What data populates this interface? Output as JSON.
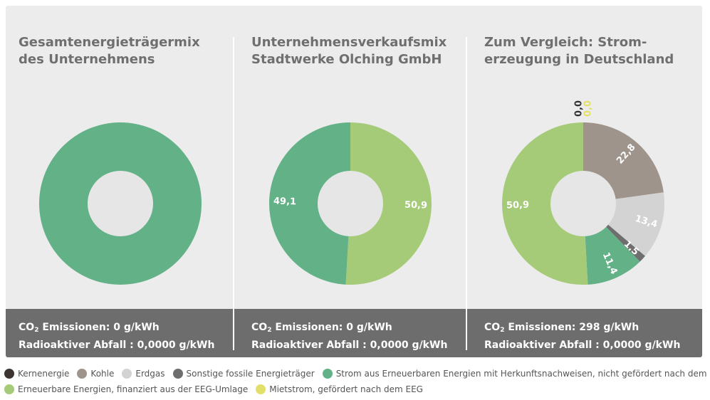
{
  "panels": [
    {
      "title_line1": "Gesamtenergieträgermix",
      "title_line2": "des Unternehmens",
      "co2_label": "CO",
      "co2_sub": "2",
      "co2_text": " Emissionen: 0 g/kWh",
      "waste_text": "Radioaktiver Abfall : 0,0000 g/kWh"
    },
    {
      "title_line1": "Unternehmensverkaufsmix",
      "title_line2": "Stadtwerke Olching GmbH",
      "co2_label": "CO",
      "co2_sub": "2",
      "co2_text": " Emissionen: 0 g/kWh",
      "waste_text": "Radioaktiver Abfall : 0,0000 g/kWh"
    },
    {
      "title_line1": "Zum Vergleich: Strom-",
      "title_line2": "erzeugung in Deutschland",
      "co2_label": "CO",
      "co2_sub": "2",
      "co2_text": " Emissionen: 298 g/kWh",
      "waste_text": "Radioaktiver Abfall : 0,0000 g/kWh"
    }
  ],
  "legend": [
    {
      "label": "Kernenergie",
      "color": "#3b3430"
    },
    {
      "label": "Kohle",
      "color": "#9e948b"
    },
    {
      "label": "Erdgas",
      "color": "#d3d3d3"
    },
    {
      "label": "Sonstige fossile Energieträger",
      "color": "#6e6e6e"
    },
    {
      "label": "Strom aus Erneuerbaren Energien mit Herkunftsnachweisen, nicht gefördert nach dem EEG",
      "color": "#63b187"
    },
    {
      "label": "Erneuerbare Energien, finanziert aus der EEG-Umlage",
      "color": "#a6cb78"
    },
    {
      "label": "Mietstrom, gefördert nach dem EEG",
      "color": "#e3e06a"
    }
  ],
  "chart_data": [
    {
      "type": "pie",
      "title": "Gesamtenergieträgermix des Unternehmens",
      "slices": [
        {
          "name": "Strom aus Erneuerbaren Energien mit Herkunftsnachweisen, nicht gefördert nach dem EEG",
          "value": 100,
          "label": "",
          "color": "#63b187"
        }
      ]
    },
    {
      "type": "pie",
      "title": "Unternehmensverkaufsmix Stadtwerke Olching GmbH",
      "slices": [
        {
          "name": "Erneuerbare Energien, finanziert aus der EEG-Umlage",
          "value": 50.9,
          "label": "50,9",
          "color": "#a6cb78"
        },
        {
          "name": "Strom aus Erneuerbaren Energien mit Herkunftsnachweisen, nicht gefördert nach dem EEG",
          "value": 49.1,
          "label": "49,1",
          "color": "#63b187"
        }
      ]
    },
    {
      "type": "pie",
      "title": "Zum Vergleich: Stromerzeugung in Deutschland",
      "slices": [
        {
          "name": "Kernenergie",
          "value": 0.0,
          "label": "0,0",
          "color": "#3b3430"
        },
        {
          "name": "Kohle",
          "value": 22.8,
          "label": "22,8",
          "color": "#9e948b"
        },
        {
          "name": "Erdgas",
          "value": 13.4,
          "label": "13,4",
          "color": "#d3d3d3"
        },
        {
          "name": "Sonstige fossile Energieträger",
          "value": 1.5,
          "label": "1,5",
          "color": "#6e6e6e"
        },
        {
          "name": "Strom aus Erneuerbaren Energien mit Herkunftsnachweisen, nicht gefördert nach dem EEG",
          "value": 11.4,
          "label": "11,4",
          "color": "#63b187"
        },
        {
          "name": "Erneuerbare Energien, finanziert aus der EEG-Umlage",
          "value": 50.9,
          "label": "50,9",
          "color": "#a6cb78"
        },
        {
          "name": "Mietstrom, gefördert nach dem EEG",
          "value": 0.0,
          "label": "0,0",
          "color": "#e3e06a"
        }
      ]
    }
  ]
}
